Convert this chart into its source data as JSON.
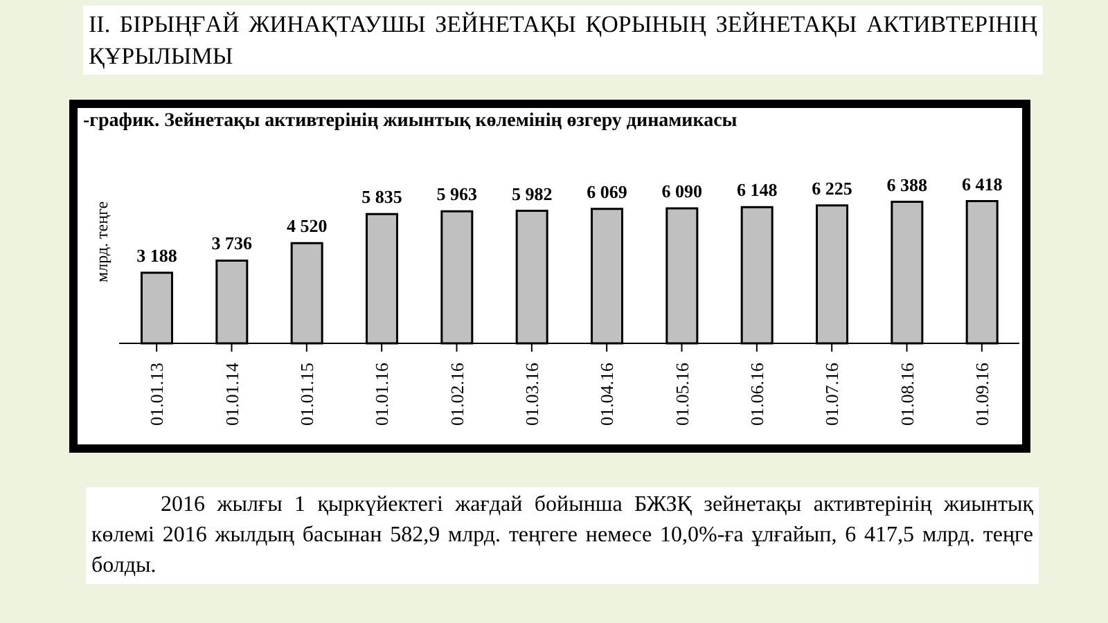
{
  "chart_data": {
    "type": "bar",
    "title": "II. БІРЫҢҒАЙ ЖИНАҚТАУШЫ ЗЕЙНЕТАҚЫ ҚОРЫНЫҢ ЗЕЙНЕТАҚЫ АКТИВТЕРІНІҢ ҚҰРЫЛЫМЫ",
    "subtitle": "-график. Зейнетақы активтерінің жиынтық көлемінің өзгеру динамикасы",
    "ylabel": "млрд. теңге",
    "categories": [
      "01.01.13",
      "01.01.14",
      "01.01.15",
      "01.01.16",
      "01.02.16",
      "01.03.16",
      "01.04.16",
      "01.05.16",
      "01.06.16",
      "01.07.16",
      "01.08.16",
      "01.09.16"
    ],
    "values": [
      3188,
      3736,
      4520,
      5835,
      5963,
      5982,
      6069,
      6090,
      6148,
      6225,
      6388,
      6418
    ],
    "value_labels": [
      "3 188",
      "3 736",
      "4 520",
      "5 835",
      "5 963",
      "5 982",
      "6 069",
      "6 090",
      "6 148",
      "6 225",
      "6 388",
      "6 418"
    ],
    "color": "#c0c0c0",
    "grid": false,
    "legend": false,
    "annotations": [
      "2016 жылғы 1 қыркүйектегі жағдай бойынша БЖЗҚ зейнетақы активтерінің жиынтық көлемі 2016 жылдың басынан 582,9 млрд. теңгеге немесе 10,0%-ға ұлғайып, 6 417,5 млрд. теңге болды."
    ]
  }
}
